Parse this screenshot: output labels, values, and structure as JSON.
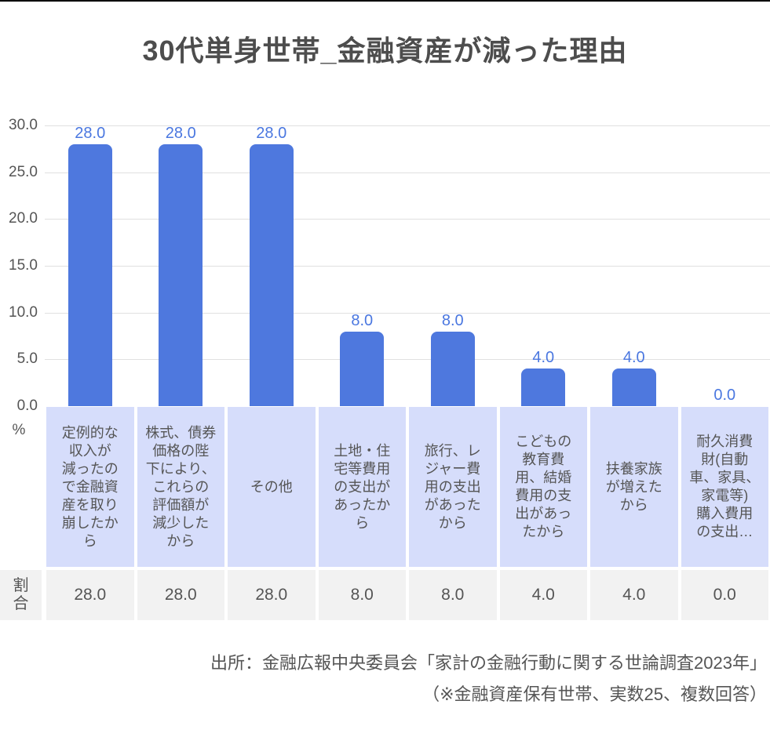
{
  "chart_data": {
    "type": "bar",
    "title": "30代単身世帯_金融資産が減った理由",
    "categories": [
      "定例的な収入が減ったので金融資産を取り崩したから",
      "株式、債券価格の陛下により、これらの評価額が減少したから",
      "その他",
      "土地・住宅等費用の支出があったから",
      "旅行、レジャー費用の支出があったから",
      "こどもの教育費用、結婚費用の支出があったから",
      "扶養家族が増えたから",
      "耐久消費財(自動車、家具、家電等)購入費用の支出…"
    ],
    "categories_display": [
      "定例的な\n収入が\n減ったの\nで金融資\n産を取り\n崩したか\nら",
      "株式、債券\n価格の陛\n下により、\nこれらの\n評価額が\n減少した\nから",
      "その他",
      "土地・住\n宅等費用\nの支出が\nあったか\nら",
      "旅行、レ\nジャー費\n用の支出\nがあった\nから",
      "こどもの\n教育費\n用、結婚\n費用の支\n出があっ\nたから",
      "扶養家族\nが増えた\nから",
      "耐久消費\n財(自動\n車、家具、\n家電等)\n購入費用\nの支出…"
    ],
    "values": [
      28.0,
      28.0,
      28.0,
      8.0,
      8.0,
      4.0,
      4.0,
      0.0
    ],
    "value_labels": [
      "28.0",
      "28.0",
      "28.0",
      "8.0",
      "8.0",
      "4.0",
      "4.0",
      "0.0"
    ],
    "ylim": [
      0,
      30
    ],
    "yticks": [
      "30.0",
      "25.0",
      "20.0",
      "15.0",
      "10.0",
      "5.0",
      "0.0"
    ],
    "y_unit": "%",
    "grid": true,
    "legend": "none",
    "bar_color": "#4e78de",
    "value_label_color": "#4a77e0",
    "category_bg_color": "#d6ddfb"
  },
  "table": {
    "header": "割合",
    "values": [
      "28.0",
      "28.0",
      "28.0",
      "8.0",
      "8.0",
      "4.0",
      "4.0",
      "0.0"
    ]
  },
  "footer": {
    "line1": "出所：金融広報中央委員会「家計の金融行動に関する世論調査2023年」",
    "line2": "（※金融資産保有世帯、実数25、複数回答）"
  }
}
